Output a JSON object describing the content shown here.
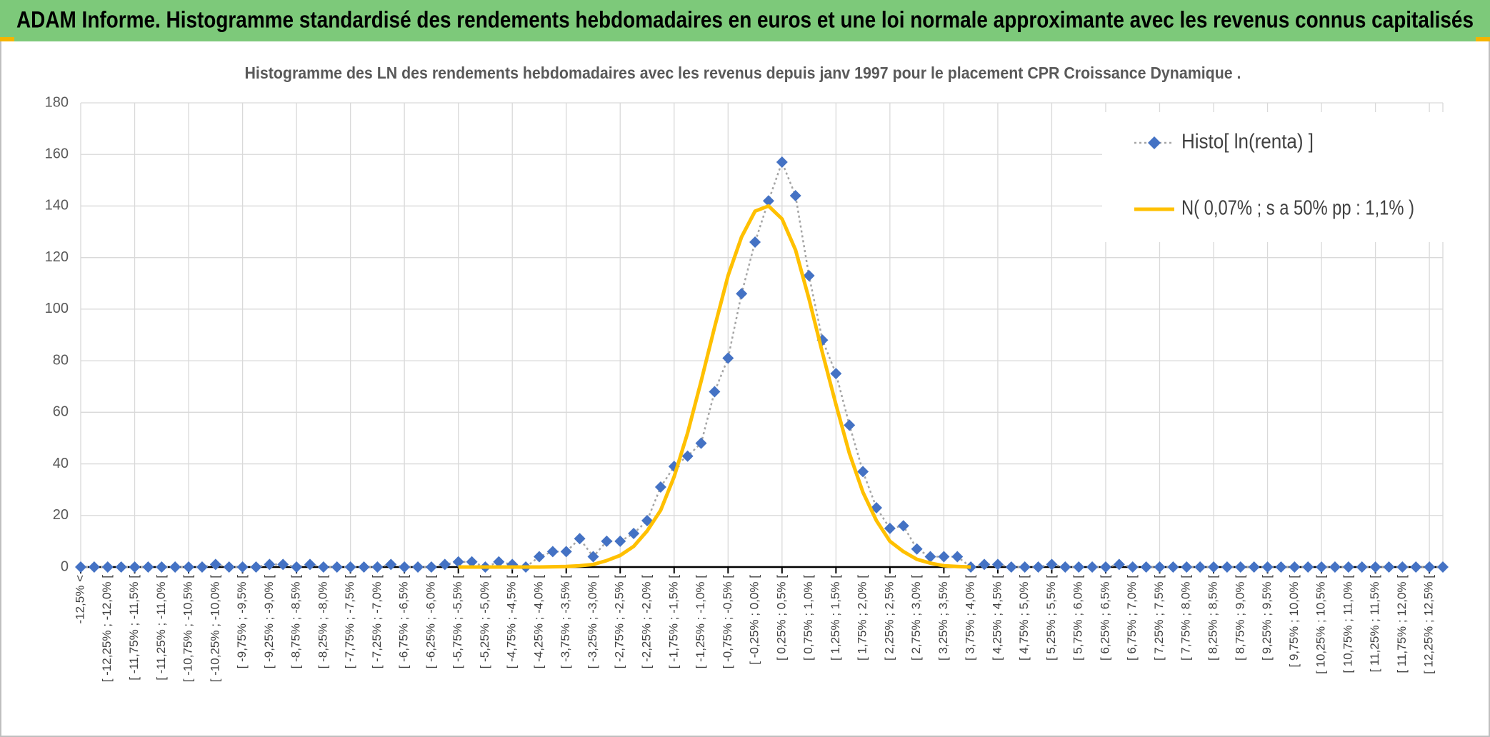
{
  "chart_data": {
    "type": "line",
    "title": "ADAM Informe. Histogramme standardisé des rendements hebdomadaires en euros et une loi normale approximante avec les revenus connus capitalisés",
    "subtitle": "Histogramme des LN des rendements hebdomadaires avec les revenus depuis janv 1997 pour le placement CPR Croissance Dynamique .",
    "categories": [
      "-12,5% <",
      null,
      "[ -12,25% ; -12,0% [",
      null,
      "[ -11,75% ; -11,5% [",
      null,
      "[ -11,25% ; -11,0% [",
      null,
      "[ -10,75% ; -10,5% [",
      null,
      "[ -10,25% ; -10,0% [",
      null,
      "[ -9,75% ; -9,5% [",
      null,
      "[ -9,25% ; -9,0% [",
      null,
      "[ -8,75% ; -8,5% [",
      null,
      "[ -8,25% ; -8,0% [",
      null,
      "[ -7,75% ; -7,5% [",
      null,
      "[ -7,25% ; -7,0% [",
      null,
      "[ -6,75% ; -6,5% [",
      null,
      "[ -6,25% ; -6,0% [",
      null,
      "[ -5,75% ; -5,5% [",
      null,
      "[ -5,25% ; -5,0% [",
      null,
      "[ -4,75% ; -4,5% [",
      null,
      "[ -4,25% ; -4,0% [",
      null,
      "[ -3,75% ; -3,5% [",
      null,
      "[ -3,25% ; -3,0% [",
      null,
      "[ -2,75% ; -2,5% [",
      null,
      "[ -2,25% ; -2,0% [",
      null,
      "[ -1,75% ; -1,5% [",
      null,
      "[ -1,25% ; -1,0% [",
      null,
      "[ -0,75% ; -0,5% [",
      null,
      "[ -0,25% ; 0,0% [",
      null,
      "[ 0,25% ; 0,5% [",
      null,
      "[ 0,75% ; 1,0% [",
      null,
      "[ 1,25% ; 1,5% [",
      null,
      "[ 1,75% ; 2,0% [",
      null,
      "[ 2,25% ; 2,5% [",
      null,
      "[ 2,75% ; 3,0% [",
      null,
      "[ 3,25% ; 3,5% [",
      null,
      "[ 3,75% ; 4,0% [",
      null,
      "[ 4,25% ; 4,5% [",
      null,
      "[ 4,75% ; 5,0% [",
      null,
      "[ 5,25% ; 5,5% [",
      null,
      "[ 5,75% ; 6,0% [",
      null,
      "[ 6,25% ; 6,5% [",
      null,
      "[ 6,75% ; 7,0% [",
      null,
      "[ 7,25% ; 7,5% [",
      null,
      "[ 7,75% ; 8,0% [",
      null,
      "[ 8,25% ; 8,5% [",
      null,
      "[ 8,75% ; 9,0% [",
      null,
      "[ 9,25% ; 9,5% [",
      null,
      "[ 9,75% ; 10,0% [",
      null,
      "[ 10,25% ; 10,5% [",
      null,
      "[ 10,75% ; 11,0% [",
      null,
      "[ 11,25% ; 11,5% [",
      null,
      "[ 11,75% ; 12,0% [",
      null,
      "[ 12,25% ; 12,5% [",
      null
    ],
    "series": [
      {
        "name": "Histo[ ln(renta) ]",
        "color": "#4472c4",
        "line_color": "#a5a5a5",
        "line_style": "dotted",
        "marker": "diamond",
        "values": [
          0,
          0,
          0,
          0,
          0,
          0,
          0,
          0,
          0,
          0,
          1,
          0,
          0,
          0,
          1,
          1,
          0,
          1,
          0,
          0,
          0,
          0,
          0,
          1,
          0,
          0,
          0,
          1,
          2,
          2,
          0,
          2,
          1,
          0,
          4,
          6,
          6,
          11,
          4,
          10,
          10,
          13,
          18,
          31,
          39,
          43,
          48,
          68,
          81,
          106,
          126,
          142,
          157,
          144,
          113,
          88,
          75,
          55,
          37,
          23,
          15,
          16,
          7,
          4,
          4,
          4,
          0,
          1,
          1,
          0,
          0,
          0,
          1,
          0,
          0,
          0,
          0,
          1,
          0,
          0,
          0,
          0,
          0,
          0,
          0,
          0,
          0,
          0,
          0,
          0,
          0,
          0,
          0,
          0,
          0,
          0,
          0,
          0,
          0,
          0,
          0,
          0
        ]
      },
      {
        "name": "N( 0,07% ; s a 50% pp : 1,1% )",
        "color": "#ffc000",
        "line_style": "solid",
        "values": [
          null,
          null,
          null,
          null,
          null,
          null,
          null,
          null,
          null,
          null,
          null,
          null,
          null,
          null,
          null,
          null,
          null,
          null,
          null,
          null,
          null,
          null,
          null,
          null,
          null,
          null,
          null,
          null,
          0,
          0,
          0,
          0,
          0,
          0,
          0,
          0.1,
          0.2,
          0.5,
          1,
          2.5,
          4.5,
          8,
          14,
          22,
          35,
          52,
          72,
          93,
          113,
          128,
          138,
          140,
          135,
          123,
          104,
          83,
          63,
          44,
          29,
          18,
          10,
          6,
          3,
          1.5,
          0.5,
          0.2,
          0,
          null,
          null,
          null,
          null,
          null,
          null,
          null,
          null,
          null,
          null,
          null,
          null,
          null,
          null,
          null,
          null,
          null,
          null,
          null,
          null,
          null,
          null,
          null,
          null,
          null,
          null,
          null,
          null,
          null,
          null,
          null,
          null,
          null,
          null,
          null
        ]
      }
    ],
    "ylim": [
      0,
      180
    ],
    "yticks": [
      0,
      20,
      40,
      60,
      80,
      100,
      120,
      140,
      160,
      180
    ],
    "grid": true,
    "legend": "top-right"
  }
}
